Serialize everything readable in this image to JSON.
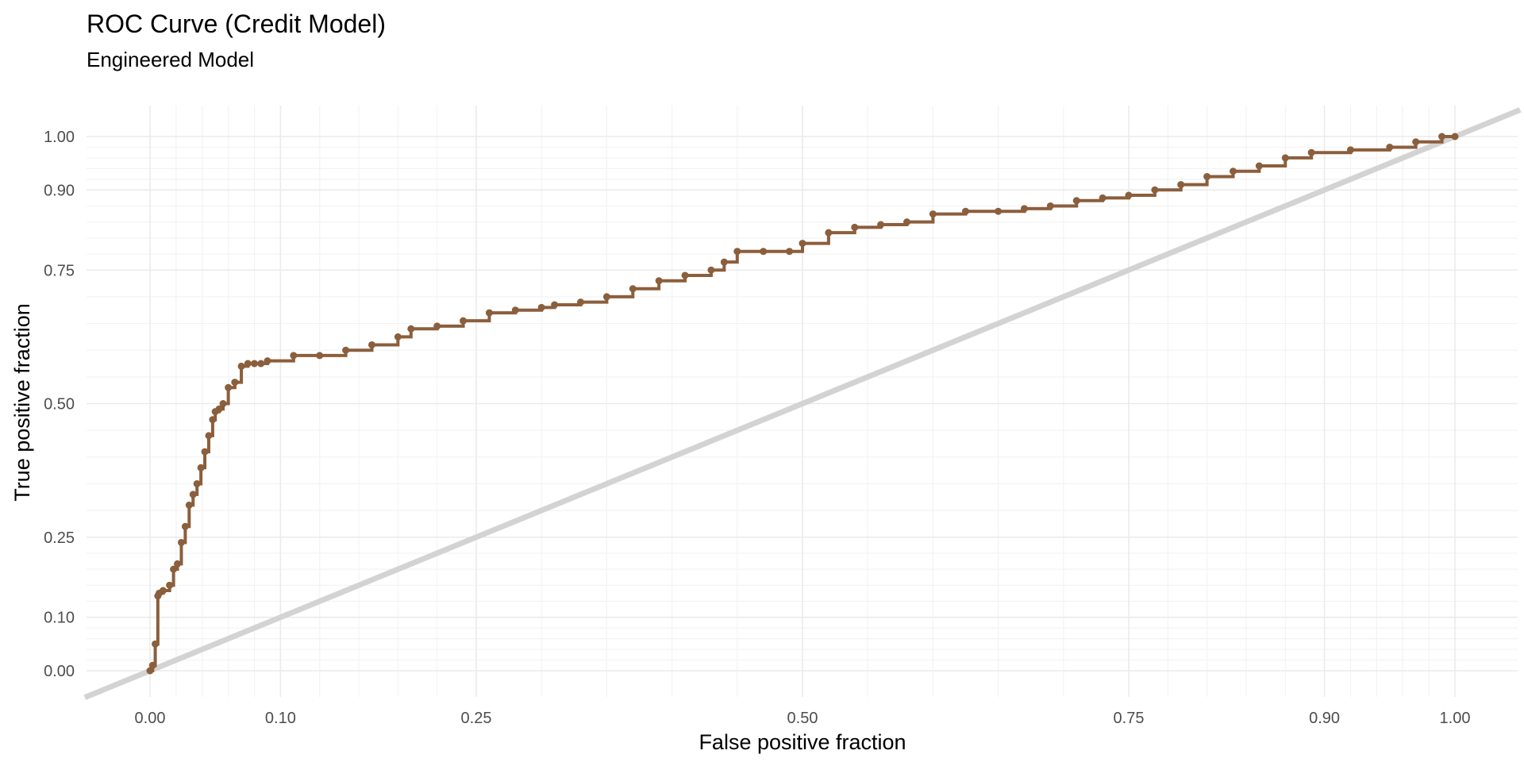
{
  "chart_data": {
    "type": "line",
    "title": "ROC Curve (Credit Model)",
    "subtitle": "Engineered Model",
    "xlabel": "False positive fraction",
    "ylabel": "True positive fraction",
    "x_ticks": [
      "0.00",
      "0.10",
      "0.25",
      "0.50",
      "0.75",
      "0.90",
      "1.00"
    ],
    "y_ticks": [
      "0.00",
      "0.10",
      "0.25",
      "0.50",
      "0.75",
      "0.90",
      "1.00"
    ],
    "x_tick_values": [
      0,
      0.1,
      0.25,
      0.5,
      0.75,
      0.9,
      1.0
    ],
    "y_tick_values": [
      0,
      0.1,
      0.25,
      0.5,
      0.75,
      0.9,
      1.0
    ],
    "xlim": [
      -0.05,
      1.05
    ],
    "ylim": [
      -0.05,
      1.05
    ],
    "grid": true,
    "legend": "none",
    "colors": {
      "curve": "#8B5E3C",
      "diagonal": "#d3d3d3"
    },
    "reference_line": {
      "x": [
        -0.05,
        1.05
      ],
      "y": [
        -0.05,
        1.05
      ]
    },
    "series": [
      {
        "x": [
          0.0,
          0.002,
          0.004,
          0.006,
          0.007,
          0.01,
          0.015,
          0.018,
          0.021,
          0.024,
          0.027,
          0.03,
          0.033,
          0.036,
          0.039,
          0.042,
          0.045,
          0.048,
          0.05,
          0.053,
          0.056,
          0.06,
          0.065,
          0.07,
          0.075,
          0.08,
          0.085,
          0.09,
          0.11,
          0.13,
          0.15,
          0.17,
          0.19,
          0.2,
          0.22,
          0.24,
          0.26,
          0.28,
          0.3,
          0.31,
          0.33,
          0.35,
          0.37,
          0.39,
          0.41,
          0.43,
          0.44,
          0.45,
          0.47,
          0.49,
          0.5,
          0.52,
          0.54,
          0.56,
          0.58,
          0.6,
          0.625,
          0.65,
          0.67,
          0.69,
          0.71,
          0.73,
          0.75,
          0.77,
          0.79,
          0.81,
          0.83,
          0.85,
          0.87,
          0.89,
          0.92,
          0.95,
          0.97,
          0.99,
          1.0
        ],
        "y": [
          0.0,
          0.01,
          0.05,
          0.14,
          0.145,
          0.15,
          0.16,
          0.19,
          0.2,
          0.24,
          0.27,
          0.31,
          0.33,
          0.35,
          0.38,
          0.41,
          0.44,
          0.47,
          0.485,
          0.49,
          0.5,
          0.53,
          0.54,
          0.57,
          0.575,
          0.575,
          0.575,
          0.58,
          0.59,
          0.59,
          0.6,
          0.61,
          0.625,
          0.64,
          0.645,
          0.655,
          0.67,
          0.675,
          0.68,
          0.685,
          0.69,
          0.7,
          0.715,
          0.73,
          0.74,
          0.75,
          0.765,
          0.785,
          0.785,
          0.785,
          0.8,
          0.82,
          0.83,
          0.835,
          0.84,
          0.855,
          0.86,
          0.86,
          0.865,
          0.87,
          0.88,
          0.885,
          0.89,
          0.9,
          0.91,
          0.925,
          0.935,
          0.945,
          0.96,
          0.97,
          0.975,
          0.98,
          0.99,
          1.0,
          1.0
        ]
      }
    ]
  }
}
